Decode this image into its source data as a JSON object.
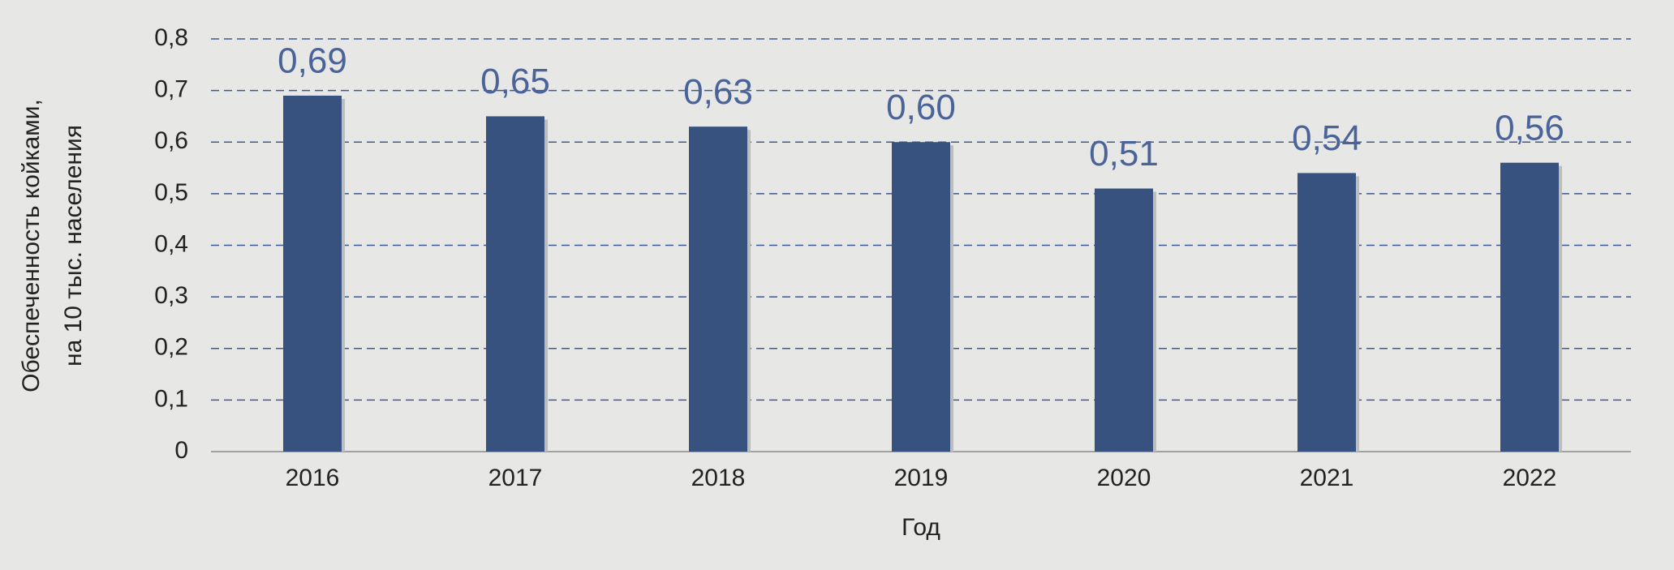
{
  "chart_data": {
    "type": "bar",
    "categories": [
      "2016",
      "2017",
      "2018",
      "2019",
      "2020",
      "2021",
      "2022"
    ],
    "values": [
      0.69,
      0.65,
      0.63,
      0.6,
      0.51,
      0.54,
      0.56
    ],
    "value_labels": [
      "0,69",
      "0,65",
      "0,63",
      "0,60",
      "0,51",
      "0,54",
      "0,56"
    ],
    "color": "#37527f",
    "ylim": [
      0,
      0.8
    ],
    "yticks": [
      0,
      {
        "value": 0.1,
        "label": "0,1"
      },
      {
        "value": 0.2,
        "label": "0,2"
      },
      {
        "value": 0.3,
        "label": "0,3"
      },
      {
        "value": 0.4,
        "label": "0,4"
      },
      {
        "value": 0.5,
        "label": "0,5"
      },
      {
        "value": 0.6,
        "label": "0,6"
      },
      {
        "value": 0.7,
        "label": "0,7"
      },
      {
        "value": 0.8,
        "label": "0,8"
      }
    ],
    "grid": true,
    "x_label": "Год",
    "y_label": [
      "Обеспеченность койками,",
      "на 10 тыс. населения"
    ]
  }
}
